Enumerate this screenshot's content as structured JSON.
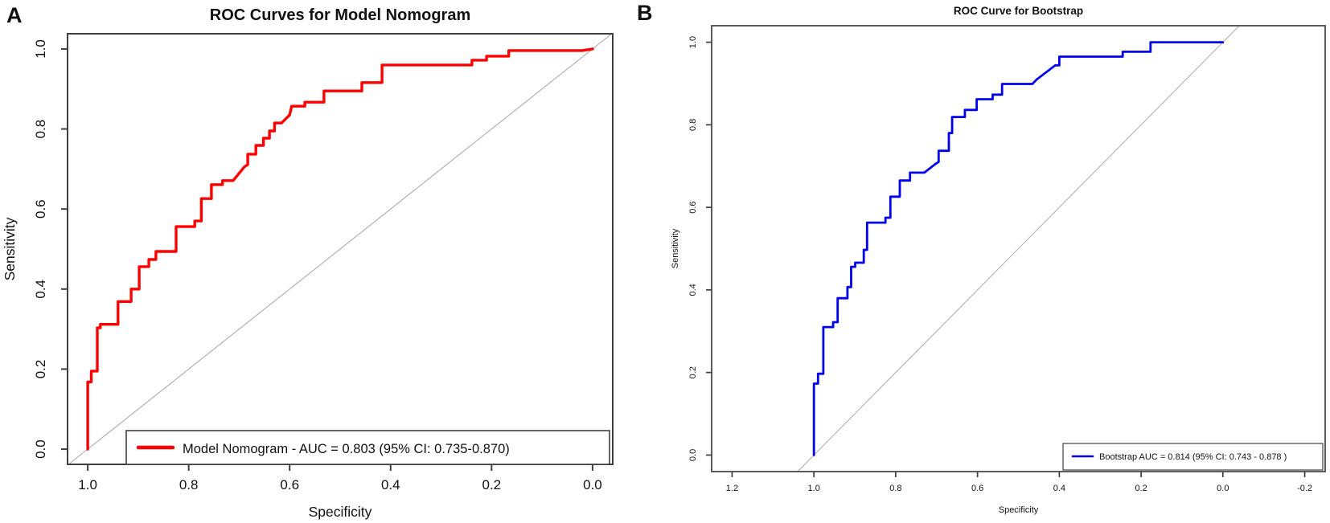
{
  "figure": {
    "background": "#ffffff",
    "text_color": "#111111",
    "axis_color": "#3f3f3f",
    "reference_line_color": "#ababab"
  },
  "chart_data": [
    {
      "type": "line",
      "panel_label": "A",
      "title": "ROC Curves for Model Nomogram",
      "xlabel": "Specificity",
      "ylabel": "Sensitivity",
      "x_axis_reversed": true,
      "x_range": [
        1.0,
        0.0
      ],
      "y_range": [
        0.0,
        1.0
      ],
      "x_ticks": [
        "1.0",
        "0.8",
        "0.6",
        "0.4",
        "0.2",
        "0.0"
      ],
      "y_ticks": [
        "0.0",
        "0.2",
        "0.4",
        "0.6",
        "0.8",
        "1.0"
      ],
      "grid": false,
      "diagonal_reference_line": true,
      "legend": {
        "position": "bottom",
        "entries": [
          {
            "label": "Model Nomogram - AUC = 0.803  (95% CI: 0.735-0.870)",
            "color": "#ff0000"
          }
        ]
      },
      "series": [
        {
          "name": "Model Nomogram",
          "color": "#ff0000",
          "auc": 0.803,
          "auc_ci_95": [
            0.735,
            0.87
          ],
          "points": [
            [
              1.0,
              0.0
            ],
            [
              1.0,
              0.168
            ],
            [
              0.993,
              0.168
            ],
            [
              0.993,
              0.195
            ],
            [
              0.981,
              0.195
            ],
            [
              0.981,
              0.303
            ],
            [
              0.975,
              0.303
            ],
            [
              0.975,
              0.312
            ],
            [
              0.94,
              0.312
            ],
            [
              0.94,
              0.369
            ],
            [
              0.914,
              0.369
            ],
            [
              0.914,
              0.4
            ],
            [
              0.898,
              0.4
            ],
            [
              0.898,
              0.456
            ],
            [
              0.879,
              0.456
            ],
            [
              0.879,
              0.474
            ],
            [
              0.865,
              0.474
            ],
            [
              0.865,
              0.494
            ],
            [
              0.825,
              0.494
            ],
            [
              0.825,
              0.556
            ],
            [
              0.788,
              0.556
            ],
            [
              0.788,
              0.57
            ],
            [
              0.775,
              0.57
            ],
            [
              0.775,
              0.626
            ],
            [
              0.755,
              0.626
            ],
            [
              0.755,
              0.661
            ],
            [
              0.733,
              0.661
            ],
            [
              0.733,
              0.671
            ],
            [
              0.712,
              0.671
            ],
            [
              0.69,
              0.705
            ],
            [
              0.683,
              0.711
            ],
            [
              0.683,
              0.737
            ],
            [
              0.667,
              0.737
            ],
            [
              0.667,
              0.759
            ],
            [
              0.652,
              0.759
            ],
            [
              0.652,
              0.777
            ],
            [
              0.64,
              0.777
            ],
            [
              0.64,
              0.795
            ],
            [
              0.63,
              0.795
            ],
            [
              0.63,
              0.815
            ],
            [
              0.616,
              0.815
            ],
            [
              0.6,
              0.835
            ],
            [
              0.596,
              0.857
            ],
            [
              0.57,
              0.857
            ],
            [
              0.57,
              0.867
            ],
            [
              0.532,
              0.867
            ],
            [
              0.532,
              0.895
            ],
            [
              0.457,
              0.895
            ],
            [
              0.457,
              0.916
            ],
            [
              0.417,
              0.916
            ],
            [
              0.417,
              0.96
            ],
            [
              0.239,
              0.96
            ],
            [
              0.239,
              0.972
            ],
            [
              0.21,
              0.972
            ],
            [
              0.21,
              0.982
            ],
            [
              0.166,
              0.982
            ],
            [
              0.166,
              0.996
            ],
            [
              0.02,
              0.996
            ],
            [
              0.0,
              1.0
            ]
          ]
        }
      ]
    },
    {
      "type": "line",
      "panel_label": "B",
      "title": "ROC Curve for Bootstrap",
      "xlabel": "Specificity",
      "ylabel": "Sensitivity",
      "x_axis_reversed": true,
      "x_range": [
        1.2,
        -0.2
      ],
      "y_range": [
        0.0,
        1.0
      ],
      "x_ticks": [
        "1.2",
        "1.0",
        "0.8",
        "0.6",
        "0.4",
        "0.2",
        "0.0",
        "-0.2"
      ],
      "y_ticks": [
        "0.0",
        "0.2",
        "0.4",
        "0.6",
        "0.8",
        "1.0"
      ],
      "grid": false,
      "diagonal_reference_line": true,
      "legend": {
        "position": "bottom-right",
        "entries": [
          {
            "label": "Bootstrap AUC = 0.814 (95% CI: 0.743 - 0.878 )",
            "color": "#0000ee"
          }
        ]
      },
      "series": [
        {
          "name": "Bootstrap",
          "color": "#0000ee",
          "auc": 0.814,
          "auc_ci_95": [
            0.743,
            0.878
          ],
          "points": [
            [
              1.0,
              0.0
            ],
            [
              1.0,
              0.173
            ],
            [
              0.99,
              0.173
            ],
            [
              0.99,
              0.197
            ],
            [
              0.977,
              0.197
            ],
            [
              0.977,
              0.31
            ],
            [
              0.953,
              0.31
            ],
            [
              0.953,
              0.322
            ],
            [
              0.942,
              0.322
            ],
            [
              0.942,
              0.38
            ],
            [
              0.918,
              0.38
            ],
            [
              0.918,
              0.407
            ],
            [
              0.909,
              0.407
            ],
            [
              0.909,
              0.456
            ],
            [
              0.899,
              0.456
            ],
            [
              0.899,
              0.466
            ],
            [
              0.878,
              0.466
            ],
            [
              0.878,
              0.497
            ],
            [
              0.87,
              0.497
            ],
            [
              0.87,
              0.563
            ],
            [
              0.825,
              0.563
            ],
            [
              0.825,
              0.575
            ],
            [
              0.813,
              0.575
            ],
            [
              0.813,
              0.626
            ],
            [
              0.79,
              0.626
            ],
            [
              0.79,
              0.665
            ],
            [
              0.765,
              0.665
            ],
            [
              0.765,
              0.684
            ],
            [
              0.73,
              0.684
            ],
            [
              0.703,
              0.705
            ],
            [
              0.695,
              0.71
            ],
            [
              0.695,
              0.737
            ],
            [
              0.67,
              0.737
            ],
            [
              0.67,
              0.78
            ],
            [
              0.662,
              0.78
            ],
            [
              0.662,
              0.819
            ],
            [
              0.631,
              0.819
            ],
            [
              0.631,
              0.836
            ],
            [
              0.602,
              0.836
            ],
            [
              0.602,
              0.862
            ],
            [
              0.563,
              0.862
            ],
            [
              0.563,
              0.873
            ],
            [
              0.54,
              0.873
            ],
            [
              0.54,
              0.899
            ],
            [
              0.466,
              0.899
            ],
            [
              0.455,
              0.91
            ],
            [
              0.41,
              0.944
            ],
            [
              0.4,
              0.944
            ],
            [
              0.4,
              0.965
            ],
            [
              0.245,
              0.965
            ],
            [
              0.245,
              0.977
            ],
            [
              0.177,
              0.977
            ],
            [
              0.177,
              1.0
            ],
            [
              0.0,
              1.0
            ]
          ]
        }
      ]
    }
  ]
}
